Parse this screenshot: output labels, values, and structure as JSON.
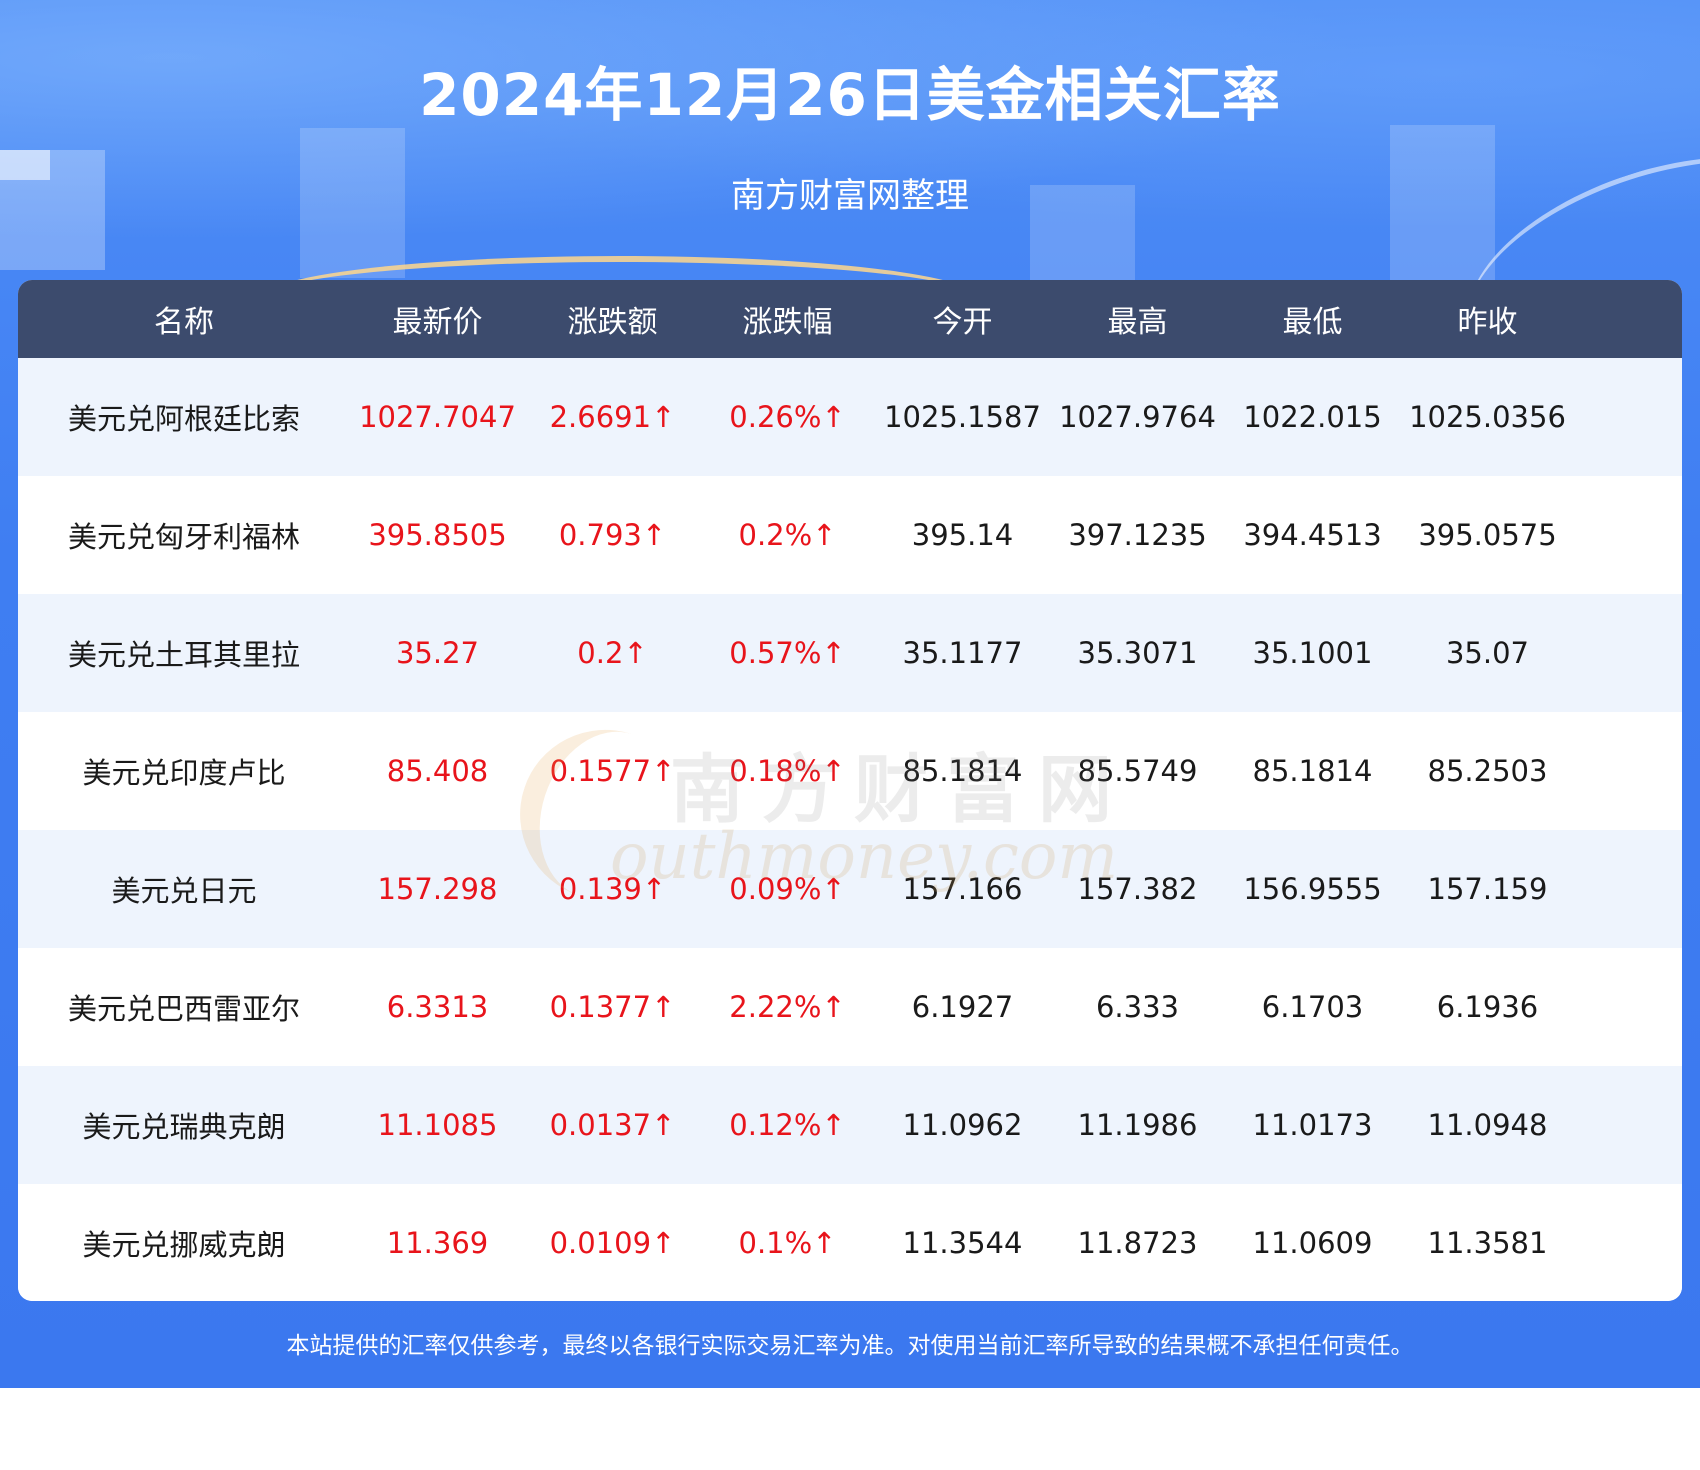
{
  "header": {
    "title": "2024年12月26日美金相关汇率",
    "subtitle": "南方财富网整理"
  },
  "table": {
    "columns": [
      "名称",
      "最新价",
      "涨跌额",
      "涨跌幅",
      "今开",
      "最高",
      "最低",
      "昨收"
    ],
    "rows": [
      [
        "美元兑阿根廷比索",
        "1027.7047",
        "2.6691↑",
        "0.26%↑",
        "1025.1587",
        "1027.9764",
        "1022.015",
        "1025.0356"
      ],
      [
        "美元兑匈牙利福林",
        "395.8505",
        "0.793↑",
        "0.2%↑",
        "395.14",
        "397.1235",
        "394.4513",
        "395.0575"
      ],
      [
        "美元兑土耳其里拉",
        "35.27",
        "0.2↑",
        "0.57%↑",
        "35.1177",
        "35.3071",
        "35.1001",
        "35.07"
      ],
      [
        "美元兑印度卢比",
        "85.408",
        "0.1577↑",
        "0.18%↑",
        "85.1814",
        "85.5749",
        "85.1814",
        "85.2503"
      ],
      [
        "美元兑日元",
        "157.298",
        "0.139↑",
        "0.09%↑",
        "157.166",
        "157.382",
        "156.9555",
        "157.159"
      ],
      [
        "美元兑巴西雷亚尔",
        "6.3313",
        "0.1377↑",
        "2.22%↑",
        "6.1927",
        "6.333",
        "6.1703",
        "6.1936"
      ],
      [
        "美元兑瑞典克朗",
        "11.1085",
        "0.0137↑",
        "0.12%↑",
        "11.0962",
        "11.1986",
        "11.0173",
        "11.0948"
      ],
      [
        "美元兑挪威克朗",
        "11.369",
        "0.0109↑",
        "0.1%↑",
        "11.3544",
        "11.8723",
        "11.0609",
        "11.3581"
      ]
    ]
  },
  "watermark": {
    "top": "南方财富网",
    "bottom": "outhmoney.com"
  },
  "footer": {
    "disclaimer": "本站提供的汇率仅供参考，最终以各银行实际交易汇率为准。对使用当前汇率所导致的结果概不承担任何责任。"
  },
  "colors": {
    "background": "#3b78ef",
    "header_row": "#3c4b6d",
    "row_alt": "#eef4fd",
    "up": "#e8141b"
  }
}
